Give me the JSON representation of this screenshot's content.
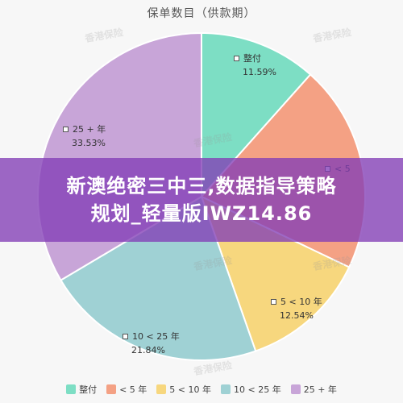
{
  "chart_data": {
    "type": "pie",
    "title": "保单数目（供款期）",
    "categories": [
      "整付",
      "< 5 年",
      "5 < 10 年",
      "10 < 25 年",
      "25 + 年"
    ],
    "values": [
      11.59,
      20.5,
      12.54,
      21.84,
      33.53
    ],
    "labels": [
      "11.59%",
      "",
      "12.54%",
      "21.84%",
      "33.53%"
    ],
    "colors": [
      "#7ddec4",
      "#f4a184",
      "#f7d77e",
      "#9fd1d4",
      "#c8a5d8"
    ],
    "legend_position": "bottom"
  },
  "overlay": {
    "line1": "新澳绝密三中三,数据指导策略",
    "line2": "规划_轻量版IWZ14.86"
  },
  "watermark_text": "香港保险",
  "partial_label": "< 5"
}
